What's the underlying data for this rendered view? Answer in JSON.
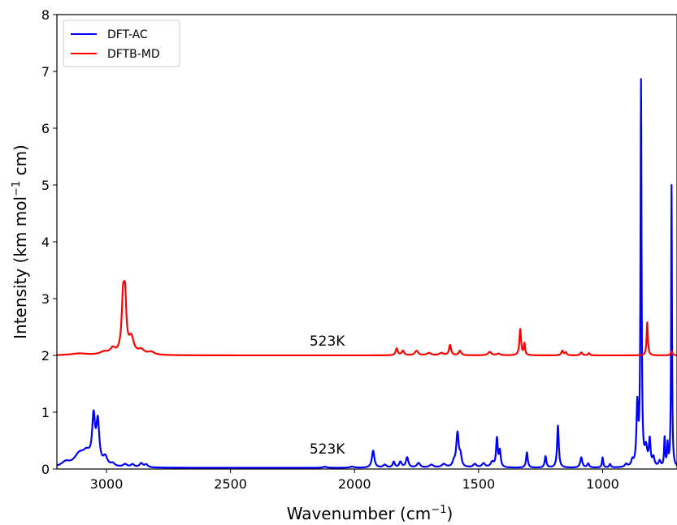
{
  "chart_data": {
    "type": "line",
    "title": "",
    "xlabel": "Wavenumber (cm",
    "xlabel_sup": "−1",
    "xlabel_end": ")",
    "ylabel": "Intensity (km mol",
    "ylabel_sup": "−1",
    "ylabel_end": " cm)",
    "xlim": [
      3200,
      700
    ],
    "ylim": [
      0,
      8
    ],
    "x_reversed": true,
    "grid": false,
    "legend_position": "top-left",
    "xticks": [
      3000,
      2500,
      2000,
      1500,
      1000
    ],
    "yticks": [
      0,
      1,
      2,
      3,
      4,
      5,
      6,
      7,
      8
    ],
    "annotations": [
      {
        "text": "523K",
        "x": 2110,
        "y": 2.17
      },
      {
        "text": "523K",
        "x": 2110,
        "y": 0.27
      }
    ],
    "series": [
      {
        "name": "DFT-AC",
        "color": "#0000ff",
        "baseline": 0.02,
        "peaks": [
          [
            3165,
            0.08,
            20
          ],
          [
            3110,
            0.2,
            25
          ],
          [
            3080,
            0.2,
            20
          ],
          [
            3052,
            0.8,
            7
          ],
          [
            3035,
            0.73,
            7
          ],
          [
            3005,
            0.15,
            10
          ],
          [
            2975,
            0.05,
            10
          ],
          [
            2925,
            0.05,
            10
          ],
          [
            2895,
            0.05,
            8
          ],
          [
            2860,
            0.07,
            8
          ],
          [
            2840,
            0.05,
            8
          ],
          [
            2120,
            0.02,
            8
          ],
          [
            2010,
            0.02,
            10
          ],
          [
            1925,
            0.3,
            6
          ],
          [
            1878,
            0.05,
            8
          ],
          [
            1842,
            0.1,
            5
          ],
          [
            1815,
            0.1,
            6
          ],
          [
            1788,
            0.18,
            6
          ],
          [
            1742,
            0.08,
            8
          ],
          [
            1690,
            0.05,
            10
          ],
          [
            1640,
            0.06,
            10
          ],
          [
            1600,
            0.08,
            6
          ],
          [
            1585,
            0.6,
            6
          ],
          [
            1573,
            0.18,
            5
          ],
          [
            1515,
            0.06,
            8
          ],
          [
            1480,
            0.07,
            8
          ],
          [
            1445,
            0.09,
            8
          ],
          [
            1426,
            0.5,
            4
          ],
          [
            1414,
            0.28,
            4
          ],
          [
            1305,
            0.27,
            4
          ],
          [
            1230,
            0.2,
            4
          ],
          [
            1180,
            0.74,
            4
          ],
          [
            1086,
            0.18,
            5
          ],
          [
            1058,
            0.07,
            5
          ],
          [
            1000,
            0.18,
            3
          ],
          [
            970,
            0.06,
            4
          ],
          [
            905,
            0.05,
            6
          ],
          [
            880,
            0.1,
            5
          ],
          [
            860,
            1.05,
            4
          ],
          [
            845,
            6.74,
            2.5
          ],
          [
            825,
            0.3,
            6
          ],
          [
            810,
            0.45,
            4
          ],
          [
            795,
            0.15,
            5
          ],
          [
            770,
            0.1,
            5
          ],
          [
            750,
            0.5,
            2.5
          ],
          [
            738,
            0.38,
            2.5
          ],
          [
            722,
            4.96,
            2
          ]
        ]
      },
      {
        "name": "DFTB-MD",
        "color": "#ff0000",
        "baseline": 2.0,
        "peaks": [
          [
            3110,
            0.03,
            40
          ],
          [
            3010,
            0.05,
            20
          ],
          [
            2975,
            0.1,
            12
          ],
          [
            2933,
            0.92,
            7
          ],
          [
            2925,
            0.8,
            6
          ],
          [
            2900,
            0.28,
            12
          ],
          [
            2860,
            0.08,
            15
          ],
          [
            2820,
            0.05,
            15
          ],
          [
            1830,
            0.12,
            5
          ],
          [
            1805,
            0.08,
            6
          ],
          [
            1750,
            0.08,
            8
          ],
          [
            1700,
            0.04,
            10
          ],
          [
            1650,
            0.04,
            10
          ],
          [
            1615,
            0.18,
            5
          ],
          [
            1575,
            0.08,
            6
          ],
          [
            1455,
            0.06,
            8
          ],
          [
            1420,
            0.03,
            8
          ],
          [
            1332,
            0.46,
            4
          ],
          [
            1315,
            0.2,
            3
          ],
          [
            1162,
            0.08,
            5
          ],
          [
            1148,
            0.05,
            4
          ],
          [
            1086,
            0.05,
            5
          ],
          [
            1055,
            0.04,
            4
          ],
          [
            820,
            0.58,
            3
          ],
          [
            722,
            0.07,
            4
          ]
        ]
      }
    ]
  }
}
